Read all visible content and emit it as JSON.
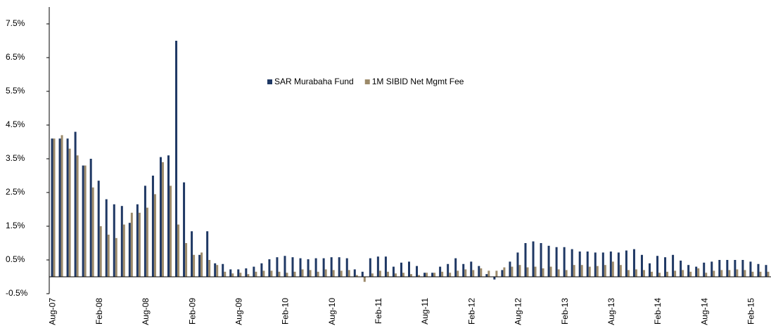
{
  "chart_data": {
    "type": "bar",
    "categories": [
      "Aug-07",
      null,
      null,
      null,
      null,
      null,
      "Feb-08",
      null,
      null,
      null,
      null,
      null,
      "Aug-08",
      null,
      null,
      null,
      null,
      null,
      "Feb-09",
      null,
      null,
      null,
      null,
      null,
      "Aug-09",
      null,
      null,
      null,
      null,
      null,
      "Feb-10",
      null,
      null,
      null,
      null,
      null,
      "Aug-10",
      null,
      null,
      null,
      null,
      null,
      "Feb-11",
      null,
      null,
      null,
      null,
      null,
      "Aug-11",
      null,
      null,
      null,
      null,
      null,
      "Feb-12",
      null,
      null,
      null,
      null,
      null,
      "Aug-12",
      null,
      null,
      null,
      null,
      null,
      "Feb-13",
      null,
      null,
      null,
      null,
      null,
      "Aug-13",
      null,
      null,
      null,
      null,
      null,
      "Feb-14",
      null,
      null,
      null,
      null,
      null,
      "Aug-14",
      null,
      null,
      null,
      null,
      null,
      "Feb-15",
      null,
      null
    ],
    "series": [
      {
        "name": "SAR Murabaha Fund",
        "color": "#1f3864",
        "values": [
          4.1,
          4.1,
          4.1,
          4.3,
          3.3,
          3.5,
          2.85,
          2.3,
          2.15,
          2.1,
          1.6,
          2.15,
          2.7,
          3.0,
          3.55,
          3.6,
          7.0,
          2.8,
          1.35,
          0.65,
          1.35,
          0.4,
          0.38,
          0.22,
          0.22,
          0.25,
          0.3,
          0.4,
          0.52,
          0.58,
          0.62,
          0.58,
          0.55,
          0.52,
          0.55,
          0.55,
          0.58,
          0.58,
          0.55,
          0.22,
          0.15,
          0.55,
          0.6,
          0.6,
          0.3,
          0.42,
          0.45,
          0.32,
          0.12,
          0.12,
          0.3,
          0.38,
          0.55,
          0.38,
          0.45,
          0.32,
          0.08,
          -0.08,
          0.2,
          0.45,
          0.72,
          1.0,
          1.05,
          1.0,
          0.92,
          0.88,
          0.88,
          0.82,
          0.75,
          0.75,
          0.72,
          0.72,
          0.75,
          0.72,
          0.78,
          0.82,
          0.65,
          0.4,
          0.62,
          0.58,
          0.65,
          0.48,
          0.35,
          0.3,
          0.42,
          0.45,
          0.5,
          0.5,
          0.5,
          0.5,
          0.45,
          0.38,
          0.35
        ]
      },
      {
        "name": "1M SIBID Net Mgmt Fee",
        "color": "#9c8a6a",
        "values": [
          4.1,
          4.2,
          3.8,
          3.6,
          3.3,
          2.65,
          1.5,
          1.25,
          1.15,
          1.55,
          1.9,
          1.9,
          2.05,
          2.45,
          3.4,
          2.7,
          1.55,
          1.0,
          0.65,
          0.72,
          0.5,
          0.35,
          0.15,
          0.1,
          0.12,
          0.08,
          0.15,
          0.18,
          0.18,
          0.15,
          0.12,
          0.15,
          0.22,
          0.2,
          0.15,
          0.22,
          0.2,
          0.18,
          0.2,
          0.05,
          -0.15,
          0.1,
          0.18,
          0.15,
          0.1,
          0.12,
          0.08,
          0.05,
          0.12,
          0.12,
          0.15,
          0.12,
          0.18,
          0.22,
          0.2,
          0.25,
          0.18,
          0.18,
          0.28,
          0.3,
          0.35,
          0.28,
          0.3,
          0.25,
          0.3,
          0.22,
          0.2,
          0.35,
          0.35,
          0.3,
          0.32,
          0.35,
          0.45,
          0.35,
          0.2,
          0.22,
          0.2,
          0.15,
          0.12,
          0.15,
          0.18,
          0.2,
          0.15,
          0.25,
          0.12,
          0.18,
          0.2,
          0.2,
          0.22,
          0.2,
          0.15,
          0.15,
          0.15
        ]
      }
    ],
    "ylim": [
      -0.5,
      8.0
    ],
    "yticks": [
      {
        "value": -0.5,
        "label": "-0.5%"
      },
      {
        "value": 0.5,
        "label": "0.5%"
      },
      {
        "value": 1.5,
        "label": "1.5%"
      },
      {
        "value": 2.5,
        "label": "2.5%"
      },
      {
        "value": 3.5,
        "label": "3.5%"
      },
      {
        "value": 4.5,
        "label": "4.5%"
      },
      {
        "value": 5.5,
        "label": "5.5%"
      },
      {
        "value": 6.5,
        "label": "6.5%"
      },
      {
        "value": 7.5,
        "label": "7.5%"
      }
    ],
    "grid": false
  }
}
